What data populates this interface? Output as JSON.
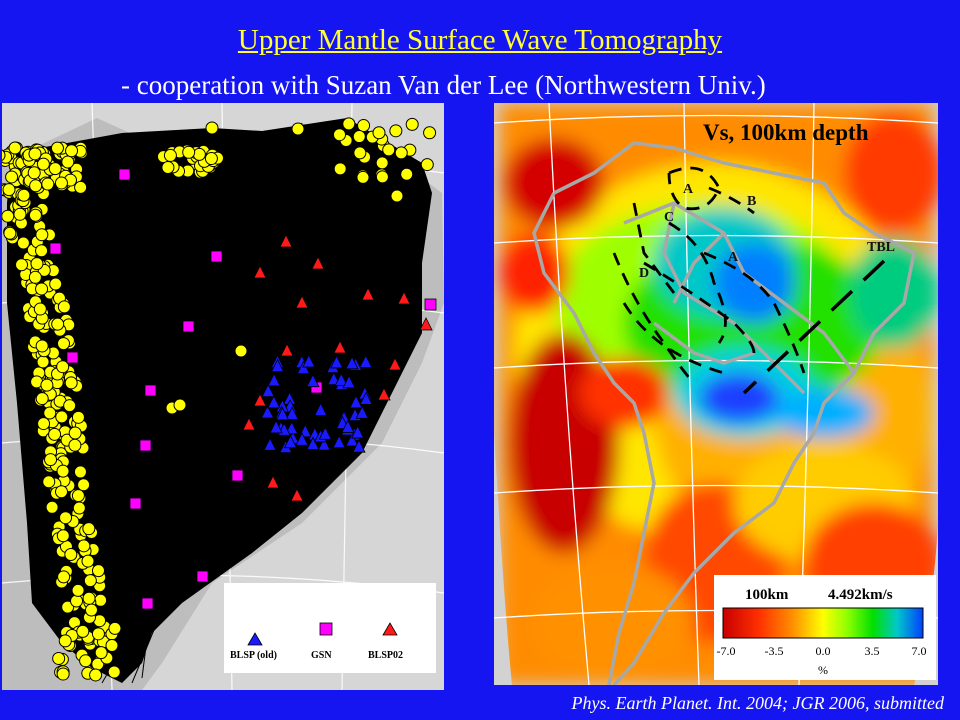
{
  "title": "Upper Mantle Surface Wave Tomography",
  "subtitle": "- cooperation with  Suzan Van der Lee (Northwestern Univ.)",
  "citation": "Phys. Earth Planet. Int. 2004;   JGR 2006, submitted",
  "left_map": {
    "legend": [
      {
        "label": "BLSP (old)",
        "icon": "blue-triangle",
        "color": "#1a1aff"
      },
      {
        "label": "GSN",
        "icon": "magenta-square",
        "color": "#ff00ff"
      },
      {
        "label": "BLSP02",
        "icon": "red-triangle",
        "color": "#ff1a1a"
      }
    ],
    "colors": {
      "ray_paths": "#000000",
      "events": "#ffff00",
      "background": "#d9d9d9"
    }
  },
  "right_map": {
    "label": "Vs, 100km depth",
    "regions": [
      "A",
      "B",
      "C",
      "A",
      "D"
    ],
    "profile_label": "TBL",
    "colorbar": {
      "depth": "100km",
      "reference_velocity": "4.492km/s",
      "ticks": [
        "-7.0",
        "-3.5",
        "0.0",
        "3.5",
        "7.0"
      ],
      "unit": "%",
      "colors": [
        "#c80000",
        "#ff3000",
        "#ff9000",
        "#ffff00",
        "#90ff00",
        "#00e000",
        "#00c8c8",
        "#0040ff"
      ]
    }
  }
}
